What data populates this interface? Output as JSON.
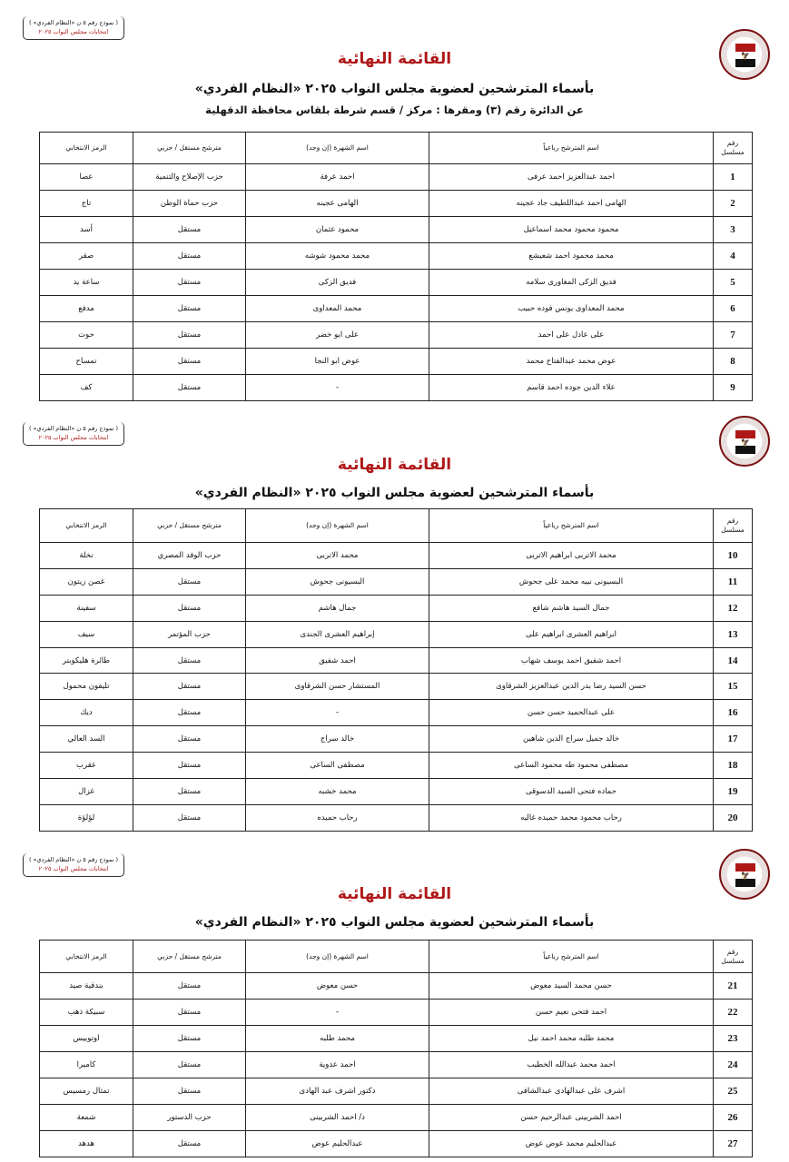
{
  "stamp": {
    "line1": "( نموذج رقم ٥ ن «النظام الفردي» )",
    "line2": "انتخابات مجلس النواب ٢٠٢٥"
  },
  "logo": {
    "icon": "egypt-eagle-emblem",
    "colors": {
      "red": "#b01818",
      "white": "#ffffff",
      "black": "#111111"
    }
  },
  "title": "القائمة النهائية",
  "subtitle": "بأسماء المترشحين لعضوية مجلس النواب ٢٠٢٥ «النظام الفردي»",
  "district": "عن الدائرة رقم (٣)   ومقرها : مركز / قسم شرطة  بلقاس   محافظة  الدقهلية",
  "accent_color": "#b01818",
  "table_headers": {
    "num": "رقم مسلسل",
    "name": "اسم المترشح رباعياً",
    "nick": "اسم الشهرة (إن وجد)",
    "type": "مترشح مستقل / حزبي",
    "symbol": "الرمز الانتخابي"
  },
  "pages": [
    {
      "rows": [
        {
          "num": "1",
          "name": "احمد عبدالعزيز احمد عرفى",
          "nick": "احمد عرفة",
          "type": "حزب الإصلاح والتنمية",
          "symbol": "عصا"
        },
        {
          "num": "2",
          "name": "الهامى احمد عبداللطيف جاد عجينه",
          "nick": "الهامى عجينه",
          "type": "حزب حماة الوطن",
          "symbol": "تاج"
        },
        {
          "num": "3",
          "name": "محمود محمود محمد اسماعيل",
          "nick": "محمود عثمان",
          "type": "مستقل",
          "symbol": "أسد"
        },
        {
          "num": "4",
          "name": "محمد محمود احمد شعيشع",
          "nick": "محمد محمود شوشه",
          "type": "مستقل",
          "symbol": "صقر"
        },
        {
          "num": "5",
          "name": "فديق الزكى المغاورى سلامه",
          "nick": "فديق الزكى",
          "type": "مستقل",
          "symbol": "ساعة يد"
        },
        {
          "num": "6",
          "name": "محمد المعداوى يونس فوده حبيب",
          "nick": "محمد المعداوى",
          "type": "مستقل",
          "symbol": "مدفع"
        },
        {
          "num": "7",
          "name": "على عادل على احمد",
          "nick": "على ابو خضر",
          "type": "مستقل",
          "symbol": "حوت"
        },
        {
          "num": "8",
          "name": "عوض محمد عبدالفتاح محمد",
          "nick": "عوض ابو النجا",
          "type": "مستقل",
          "symbol": "تمساح"
        },
        {
          "num": "9",
          "name": "علاء الدين جوده احمد قاسم",
          "nick": "-",
          "type": "مستقل",
          "symbol": "كف"
        }
      ]
    },
    {
      "rows": [
        {
          "num": "10",
          "name": "محمد الاتربى ابراهيم الاتربى",
          "nick": "محمد الاتربى",
          "type": "حزب الوفد المصري",
          "symbol": "نخلة"
        },
        {
          "num": "11",
          "name": "البسيونى نبيه محمد على جحوش",
          "nick": "البسيونى جحوش",
          "type": "مستقل",
          "symbol": "غصن زيتون"
        },
        {
          "num": "12",
          "name": "جمال السيد هاشم شافع",
          "nick": "جمال هاشم",
          "type": "مستقل",
          "symbol": "سفينة"
        },
        {
          "num": "13",
          "name": "ابراهيم العشرى ابراهيم على",
          "nick": "إبراهيم العشرى الجندى",
          "type": "حزب المؤتمر",
          "symbol": "سيف"
        },
        {
          "num": "14",
          "name": "احمد شفيق احمد يوسف شهاب",
          "nick": "احمد شفيق",
          "type": "مستقل",
          "symbol": "طائرة هليكوبتر"
        },
        {
          "num": "15",
          "name": "حسن السيد رضا بدر الدين عبدالعزيز الشرقاوى",
          "nick": "المستشار حسن الشرقاوى",
          "type": "مستقل",
          "symbol": "تليفون محمول"
        },
        {
          "num": "16",
          "name": "على عبدالحميد حسن حسن",
          "nick": "-",
          "type": "مستقل",
          "symbol": "ديك"
        },
        {
          "num": "17",
          "name": "خالد جميل سراج الدين شاهين",
          "nick": "خالد سراج",
          "type": "مستقل",
          "symbol": "السد العالي"
        },
        {
          "num": "18",
          "name": "مصطفى محمود طه محمود الساعى",
          "nick": "مصطفى الساعى",
          "type": "مستقل",
          "symbol": "عقرب"
        },
        {
          "num": "19",
          "name": "حماده فتحى السيد الدسوقى",
          "nick": "محمد خشبه",
          "type": "مستقل",
          "symbol": "غزال"
        },
        {
          "num": "20",
          "name": "رحاب محمود محمد حميده غاليه",
          "nick": "رحاب حميده",
          "type": "مستقل",
          "symbol": "لؤلؤة"
        }
      ]
    },
    {
      "rows": [
        {
          "num": "21",
          "name": "حسن محمد السيد معوض",
          "nick": "حسن معوض",
          "type": "مستقل",
          "symbol": "بندقية صيد"
        },
        {
          "num": "22",
          "name": "احمد فتحى نعيم حسن",
          "nick": "-",
          "type": "مستقل",
          "symbol": "سبيكة ذهب"
        },
        {
          "num": "23",
          "name": "محمد طلبه محمد احمد نيل",
          "nick": "محمد طلبه",
          "type": "مستقل",
          "symbol": "اوتوبيس"
        },
        {
          "num": "24",
          "name": "احمد محمد عبدالله الخطيب",
          "nick": "احمد عدوية",
          "type": "مستقل",
          "symbol": "كاميرا"
        },
        {
          "num": "25",
          "name": "اشرف على عبدالهادى عبدالشافى",
          "nick": "دكتور اشرف عبد الهادى",
          "type": "مستقل",
          "symbol": "تمثال رمسيس"
        },
        {
          "num": "26",
          "name": "احمد الشربينى عبدالرحيم حسن",
          "nick": "د/ احمد الشربينى",
          "type": "حزب الدستور",
          "symbol": "شمعة"
        },
        {
          "num": "27",
          "name": "عبدالحليم محمد عوض عوض",
          "nick": "عبدالحليم عوض",
          "type": "مستقل",
          "symbol": "هدهد"
        }
      ]
    }
  ]
}
